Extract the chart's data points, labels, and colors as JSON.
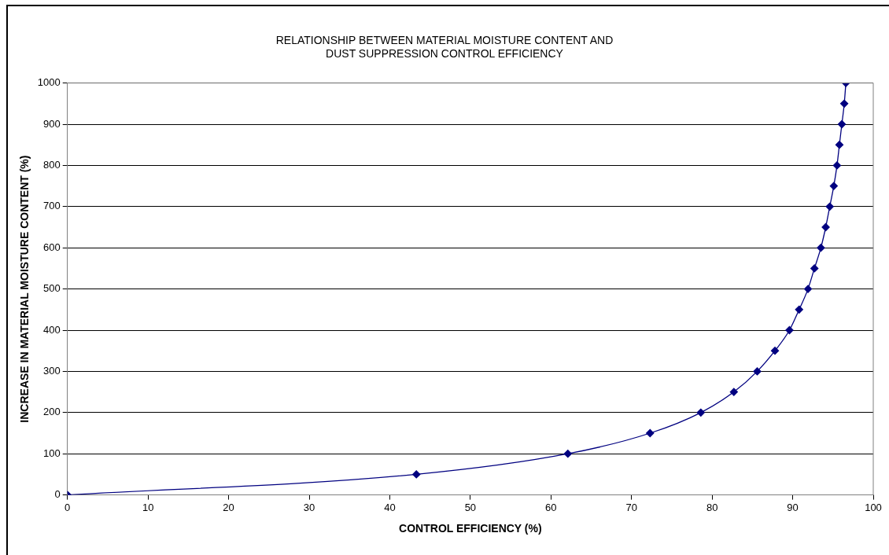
{
  "chart_data": {
    "type": "line",
    "title": [
      "RELATIONSHIP BETWEEN MATERIAL MOISTURE CONTENT AND",
      "DUST SUPPRESSION CONTROL EFFICIENCY"
    ],
    "xlabel": "CONTROL EFFICIENCY (%)",
    "ylabel": "INCREASE IN MATERIAL MOISTURE CONTENT (%)",
    "series": [
      {
        "color": "#000080",
        "x": [
          0,
          43.3,
          62.1,
          72.3,
          78.6,
          82.7,
          85.6,
          87.8,
          89.6,
          90.8,
          91.9,
          92.7,
          93.5,
          94.1,
          94.6,
          95.1,
          95.5,
          95.8,
          96.1,
          96.4,
          96.6
        ],
        "values": [
          0,
          50,
          100,
          150,
          200,
          250,
          300,
          350,
          400,
          450,
          500,
          550,
          600,
          650,
          700,
          750,
          800,
          850,
          900,
          950,
          1000
        ]
      }
    ],
    "xlim": [
      0,
      100
    ],
    "xticks": [
      0,
      10,
      20,
      30,
      40,
      50,
      60,
      70,
      80,
      90,
      100
    ],
    "ylim": [
      0,
      1000
    ],
    "yticks": [
      0,
      100,
      200,
      300,
      400,
      500,
      600,
      700,
      800,
      900,
      1000
    ],
    "grid": "y",
    "legend": false,
    "marker": "diamond",
    "line_style": "solid"
  }
}
